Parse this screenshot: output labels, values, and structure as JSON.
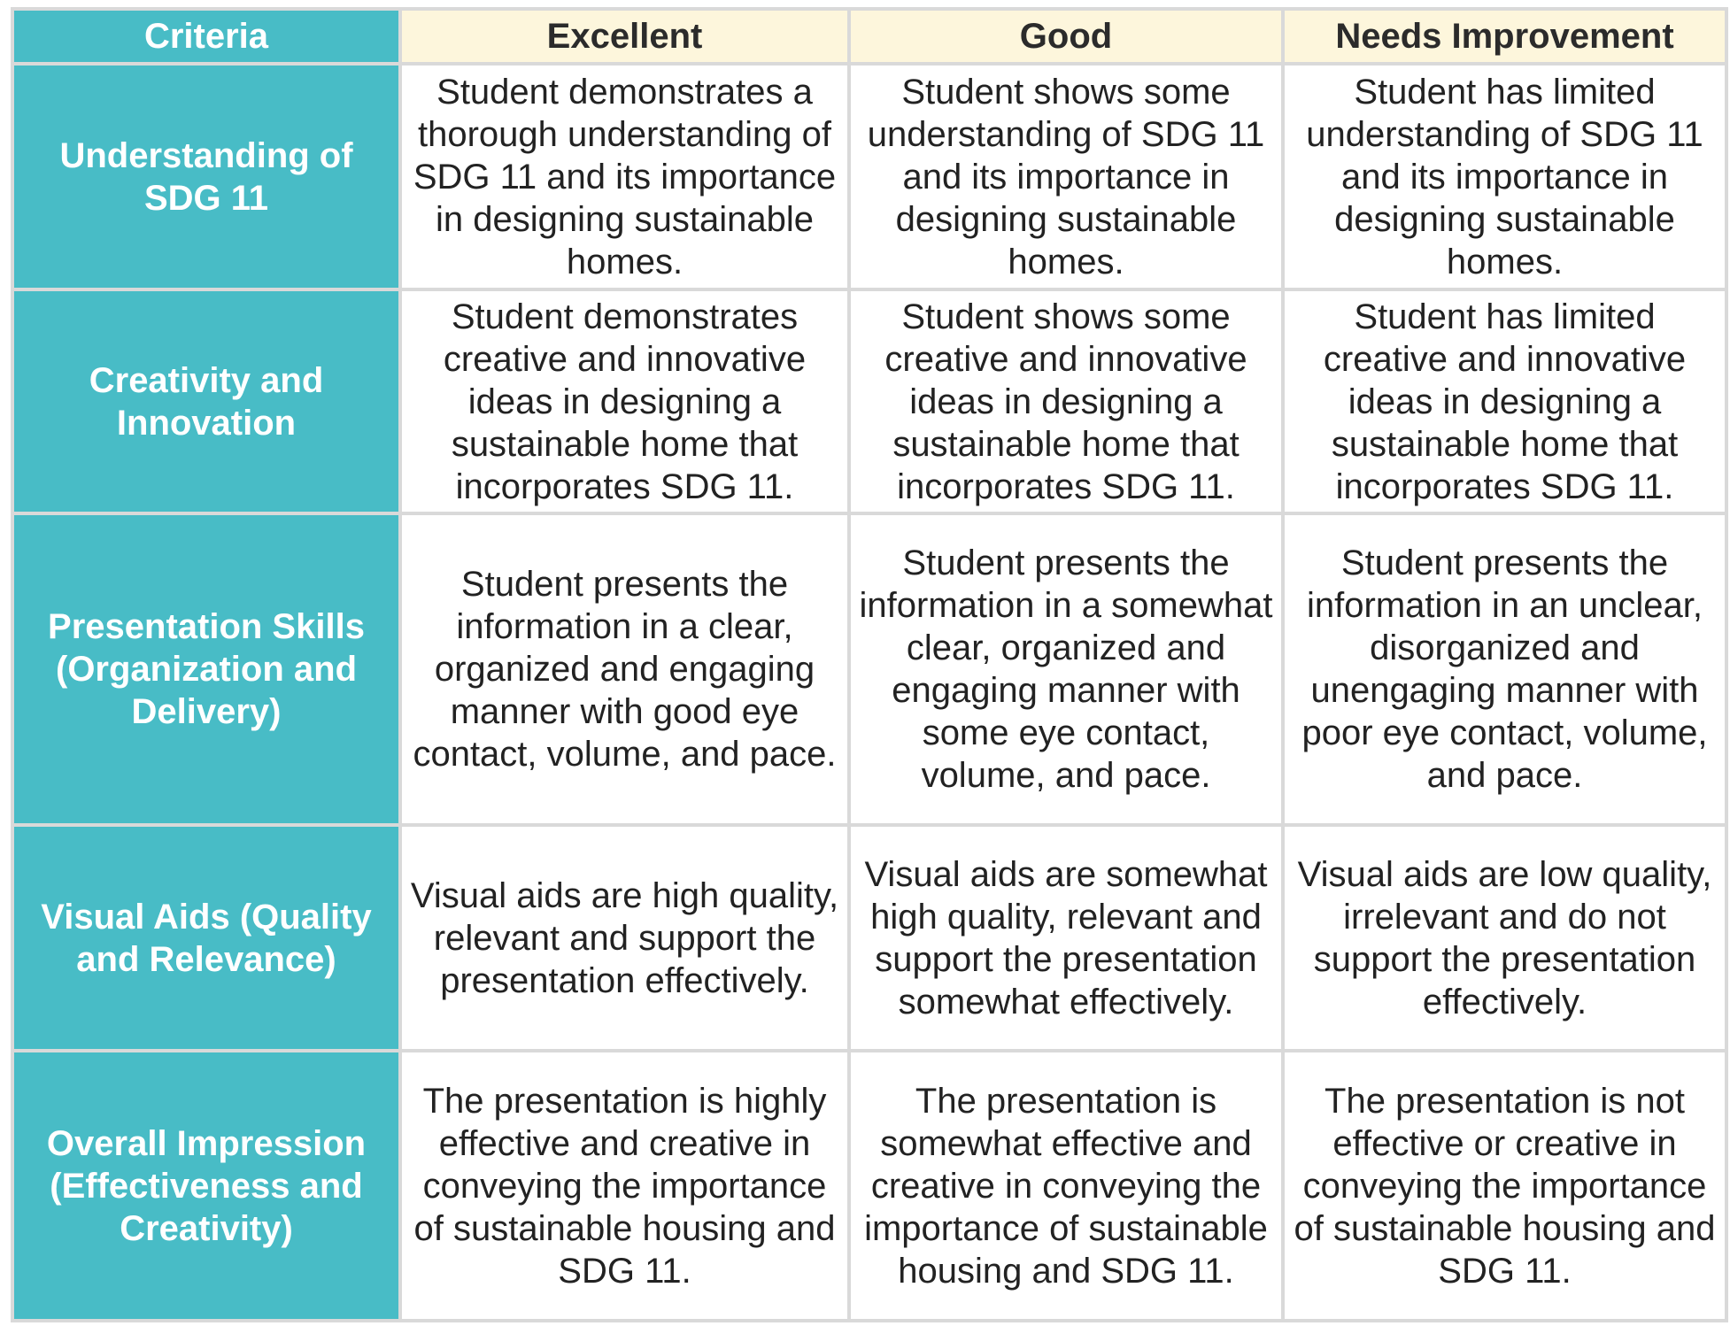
{
  "headers": {
    "criteria": "Criteria",
    "excellent": "Excellent",
    "good": "Good",
    "needs_improvement": "Needs Improvement"
  },
  "rows": [
    {
      "criterion": "Understanding of SDG 11",
      "excellent": "Student demonstrates a thorough understanding of SDG 11 and its importance in designing sustainable homes.",
      "good": "Student shows some understanding of SDG 11 and its importance in designing sustainable homes.",
      "needs_improvement": "Student has limited understanding of SDG 11 and its importance in designing sustainable homes."
    },
    {
      "criterion": "Creativity and Innovation",
      "excellent": "Student demonstrates creative and innovative ideas in designing a sustainable home that incorporates SDG 11.",
      "good": "Student shows some creative and innovative ideas in designing a sustainable home that incorporates SDG 11.",
      "needs_improvement": "Student has limited creative and innovative ideas in designing a sustainable home that incorporates SDG 11."
    },
    {
      "criterion": "Presentation Skills (Organization and Delivery)",
      "excellent": "Student presents the information in a clear, organized and engaging manner with good eye contact, volume, and pace.",
      "good": "Student presents the information in a somewhat clear, organized and engaging manner with some eye contact, volume, and pace.",
      "needs_improvement": "Student presents the information in an unclear, disorganized and unengaging manner with poor eye contact, volume, and pace."
    },
    {
      "criterion": "Visual Aids (Quality and Relevance)",
      "excellent": "Visual aids are high quality, relevant and support the presentation effectively.",
      "good": "Visual aids are somewhat high quality, relevant and support the presentation somewhat effectively.",
      "needs_improvement": "Visual aids are low quality, irrelevant and do not support the presentation effectively."
    },
    {
      "criterion": "Overall Impression (Effectiveness and Creativity)",
      "excellent": "The presentation is highly effective and creative in conveying the importance of sustainable housing and SDG 11.",
      "good": "The presentation is somewhat effective and creative in conveying the importance of sustainable housing and SDG 11.",
      "needs_improvement": "The presentation is not effective or creative in conveying the importance of sustainable housing and SDG 11."
    }
  ],
  "colors": {
    "criteria_fill": "#48bcc6",
    "level_header_fill": "#fdf6dc",
    "grid_line": "#d9d9d9",
    "cell_fill": "#ffffff"
  }
}
